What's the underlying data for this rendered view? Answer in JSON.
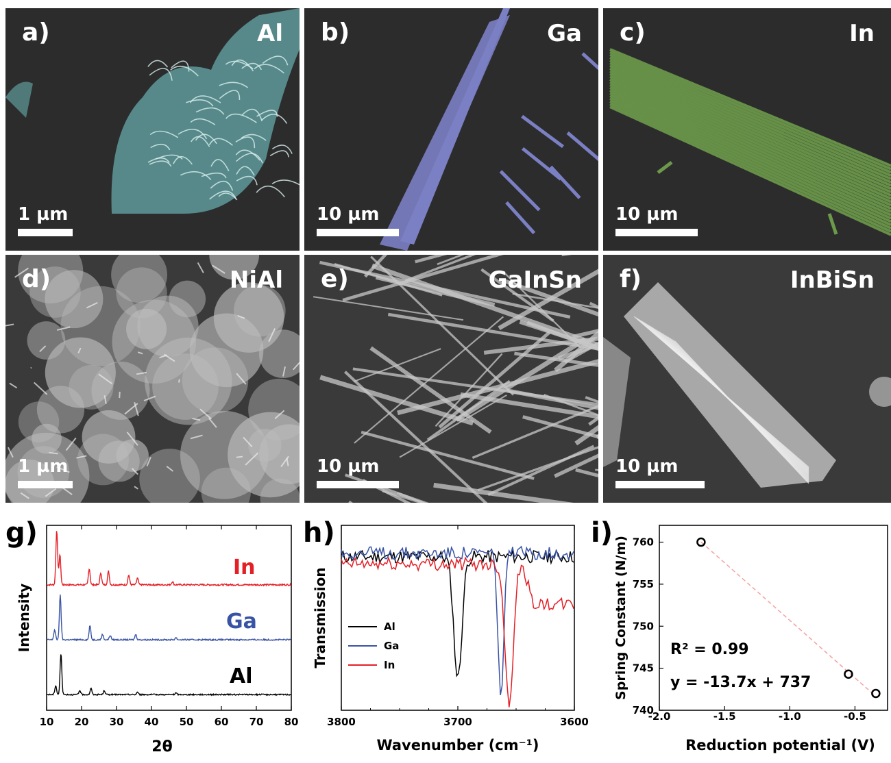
{
  "micrographs": [
    {
      "label": "a)",
      "element": "Al",
      "scale": "1 µm",
      "tint": "#5f9a9b"
    },
    {
      "label": "b)",
      "element": "Ga",
      "scale": "10 µm",
      "tint": "#7b80c4"
    },
    {
      "label": "c)",
      "element": "In",
      "scale": "10 µm",
      "tint": "#6d9a4a"
    },
    {
      "label": "d)",
      "element": "NiAl",
      "scale": "1 µm",
      "tint": "#bdbdbd"
    },
    {
      "label": "e)",
      "element": "GaInSn",
      "scale": "10 µm",
      "tint": "#c8c8c8"
    },
    {
      "label": "f)",
      "element": "InBiSn",
      "scale": "10 µm",
      "tint": "#bcbcbc"
    }
  ],
  "colors": {
    "Al": "#000000",
    "Ga": "#3953a4",
    "In": "#e41f26",
    "fit": "#f4a6a6"
  },
  "chart_data": [
    {
      "panel": "g)",
      "type": "line",
      "xlabel": "2θ",
      "ylabel": "Intensity",
      "xlim": [
        10,
        80
      ],
      "xticks": [
        10,
        20,
        30,
        40,
        50,
        60,
        70,
        80
      ],
      "series": [
        {
          "name": "In",
          "peaks": [
            [
              12.9,
              1.0
            ],
            [
              13.8,
              0.55
            ],
            [
              22.2,
              0.3
            ],
            [
              25.5,
              0.22
            ],
            [
              27.7,
              0.25
            ],
            [
              33.5,
              0.18
            ],
            [
              36.0,
              0.12
            ],
            [
              46.0,
              0.06
            ]
          ]
        },
        {
          "name": "Ga",
          "peaks": [
            [
              12.3,
              0.22
            ],
            [
              13.9,
              1.0
            ],
            [
              22.4,
              0.32
            ],
            [
              26.0,
              0.12
            ],
            [
              28.2,
              0.1
            ],
            [
              35.5,
              0.12
            ],
            [
              47.0,
              0.05
            ]
          ]
        },
        {
          "name": "Al",
          "peaks": [
            [
              12.6,
              0.22
            ],
            [
              14.1,
              1.0
            ],
            [
              19.5,
              0.1
            ],
            [
              22.7,
              0.15
            ],
            [
              26.5,
              0.1
            ],
            [
              36.0,
              0.06
            ],
            [
              47.0,
              0.04
            ]
          ]
        }
      ]
    },
    {
      "panel": "h)",
      "type": "line",
      "xlabel": "Wavenumber (cm⁻¹)",
      "ylabel": "Transmission",
      "xlim": [
        3800,
        3600
      ],
      "xticks": [
        3800,
        3700,
        3600
      ],
      "legend": "left",
      "series": [
        {
          "name": "Al",
          "baseline": 0.86,
          "dip_center": 3700,
          "dip_width": 5,
          "dip_min": 0.2
        },
        {
          "name": "Ga",
          "baseline": 0.88,
          "dip_center": 3663,
          "dip_width": 3.5,
          "dip_min": 0.1
        },
        {
          "name": "In",
          "baseline": 0.82,
          "dip_center": 3656,
          "dip_width": 5,
          "dip_min": 0.07
        }
      ]
    },
    {
      "panel": "i)",
      "type": "scatter",
      "xlabel": "Reduction potential (V)",
      "ylabel": "Spring Constant (N/m)",
      "xlim": [
        -2.0,
        -0.25
      ],
      "ylim": [
        740,
        762
      ],
      "xticks": [
        -2.0,
        -1.5,
        -1.0,
        -0.5
      ],
      "yticks": [
        740,
        745,
        750,
        755,
        760
      ],
      "points": [
        {
          "x": -1.68,
          "y": 760
        },
        {
          "x": -0.55,
          "y": 744.3
        },
        {
          "x": -0.34,
          "y": 742
        }
      ],
      "fit": {
        "slope": -13.7,
        "intercept": 737
      },
      "annotations": [
        "R² = 0.99",
        "y = -13.7x + 737"
      ]
    }
  ],
  "series_labels": {
    "g_in": "In",
    "g_ga": "Ga",
    "g_al": "Al",
    "h_al": "Al",
    "h_ga": "Ga",
    "h_in": "In"
  }
}
